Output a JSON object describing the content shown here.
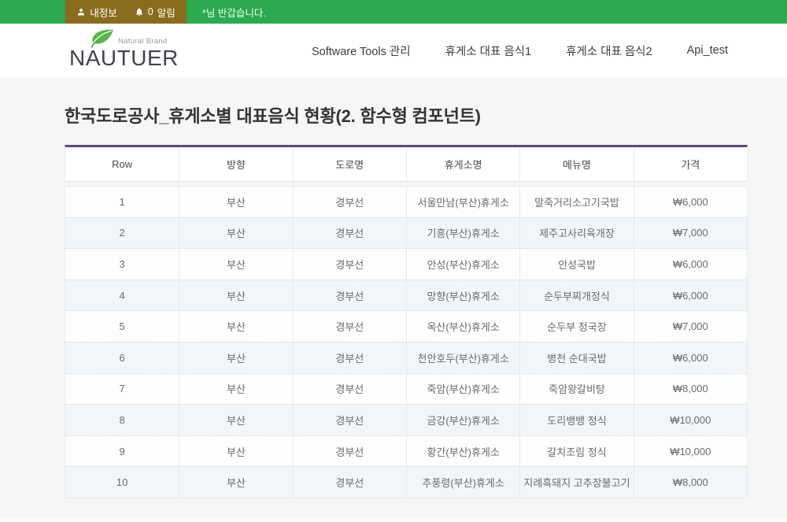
{
  "topbar": {
    "my_info_label": "내정보",
    "notification_count": "0",
    "notification_label": "알림",
    "greeting": "*님 반갑습니다.",
    "colors": {
      "bar_green": "#2BAA4F",
      "panel_brown": "#8A6C1E"
    }
  },
  "logo": {
    "brand": "NAUTUER",
    "tagline": "Natural Brand",
    "leaf_color": "#55B748"
  },
  "nav": {
    "items": [
      {
        "label": "Software Tools 관리"
      },
      {
        "label": "휴게소 대표 음식1"
      },
      {
        "label": "휴게소 대표 음식2"
      },
      {
        "label": "Api_test"
      }
    ]
  },
  "page": {
    "title": "한국도로공사_휴게소별 대표음식 현황(2. 함수형 컴포넌트)"
  },
  "table": {
    "accent_border_color": "#5D4777",
    "stripe_color": "#f2f6f8",
    "columns": [
      "Row",
      "방향",
      "도로명",
      "휴게소명",
      "메뉴명",
      "가격"
    ],
    "rows": [
      [
        "1",
        "부산",
        "경부선",
        "서울만남(부산)휴게소",
        "말죽거리소고기국밥",
        "₩6,000"
      ],
      [
        "2",
        "부산",
        "경부선",
        "기흥(부산)휴게소",
        "제주고사리육개장",
        "₩7,000"
      ],
      [
        "3",
        "부산",
        "경부선",
        "안성(부산)휴게소",
        "안성국밥",
        "₩6,000"
      ],
      [
        "4",
        "부산",
        "경부선",
        "망향(부산)휴게소",
        "순두부찌개정식",
        "₩6,000"
      ],
      [
        "5",
        "부산",
        "경부선",
        "옥산(부산)휴게소",
        "순두부 청국장",
        "₩7,000"
      ],
      [
        "6",
        "부산",
        "경부선",
        "천안호두(부산)휴게소",
        "병천 순대국밥",
        "₩6,000"
      ],
      [
        "7",
        "부산",
        "경부선",
        "죽암(부산)휴게소",
        "죽암왕갈비탕",
        "₩8,000"
      ],
      [
        "8",
        "부산",
        "경부선",
        "금강(부산)휴게소",
        "도리뱅뱅 정식",
        "₩10,000"
      ],
      [
        "9",
        "부산",
        "경부선",
        "황간(부산)휴게소",
        "갈치조림 정식",
        "₩10,000"
      ],
      [
        "10",
        "부산",
        "경부선",
        "추풍령(부산)휴게소",
        "지례흑돼지 고추장불고기",
        "₩8,000"
      ]
    ]
  }
}
